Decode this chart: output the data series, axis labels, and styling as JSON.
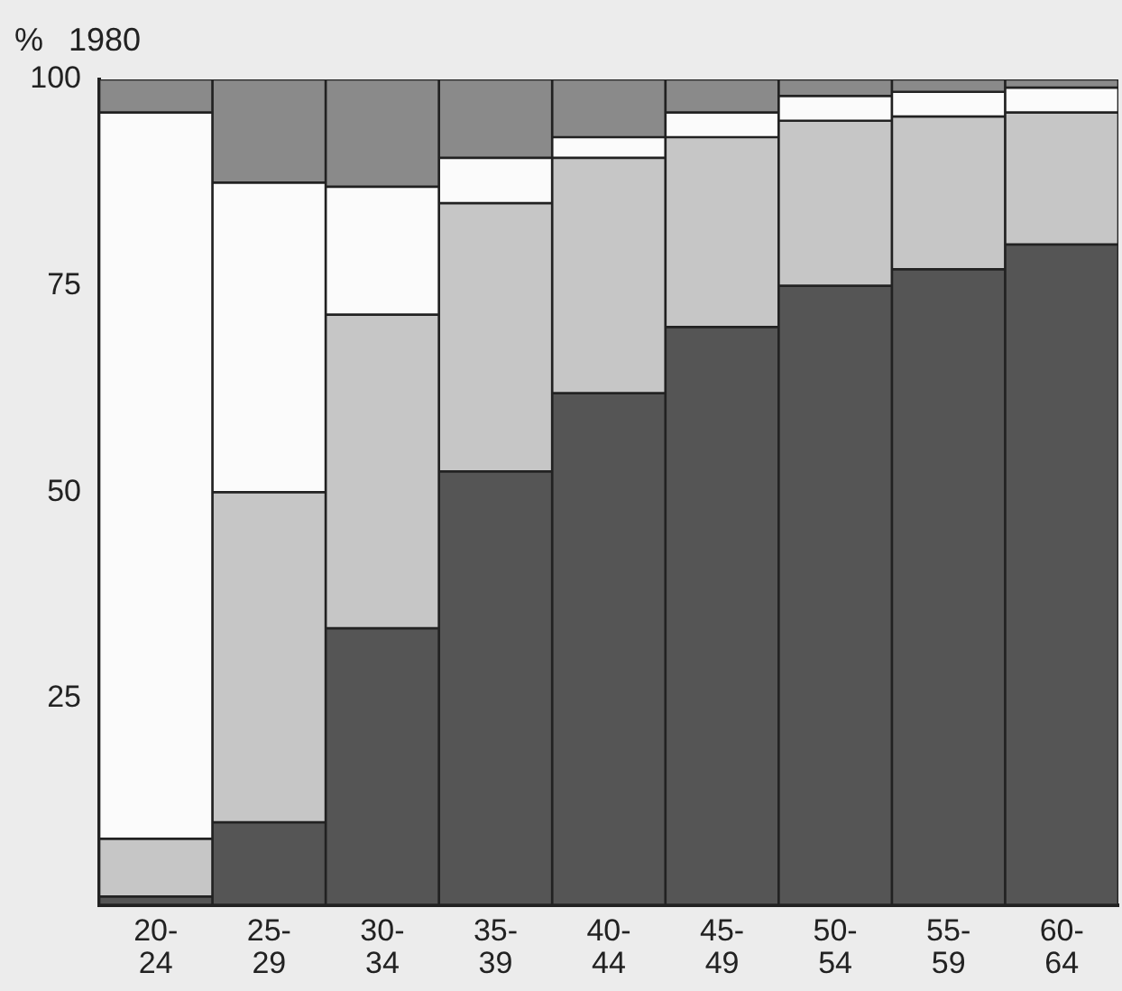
{
  "chart_data": {
    "type": "bar",
    "title": "1980",
    "ylabel": "%",
    "stacked": true,
    "categories": [
      "20-24",
      "25-29",
      "30-34",
      "35-39",
      "40-44",
      "45-49",
      "50-54",
      "55-59",
      "60-64"
    ],
    "series": [
      {
        "color": "#555555",
        "values": [
          1,
          10,
          33.5,
          52.5,
          62,
          70,
          75,
          77,
          80
        ]
      },
      {
        "color": "#c6c6c6",
        "values": [
          7,
          40,
          38,
          32.5,
          28.5,
          23,
          20,
          18.5,
          16
        ]
      },
      {
        "color": "#fbfbfb",
        "values": [
          88,
          37.5,
          15.5,
          5.5,
          2.5,
          3,
          3,
          3,
          3
        ]
      },
      {
        "color": "#8a8a8a",
        "values": [
          4,
          12.5,
          13,
          9.5,
          7,
          4,
          2,
          1.5,
          1
        ]
      }
    ],
    "ylim": [
      0,
      100
    ],
    "yticks": [
      25,
      50,
      75,
      100
    ],
    "grid": false,
    "legend": false
  }
}
